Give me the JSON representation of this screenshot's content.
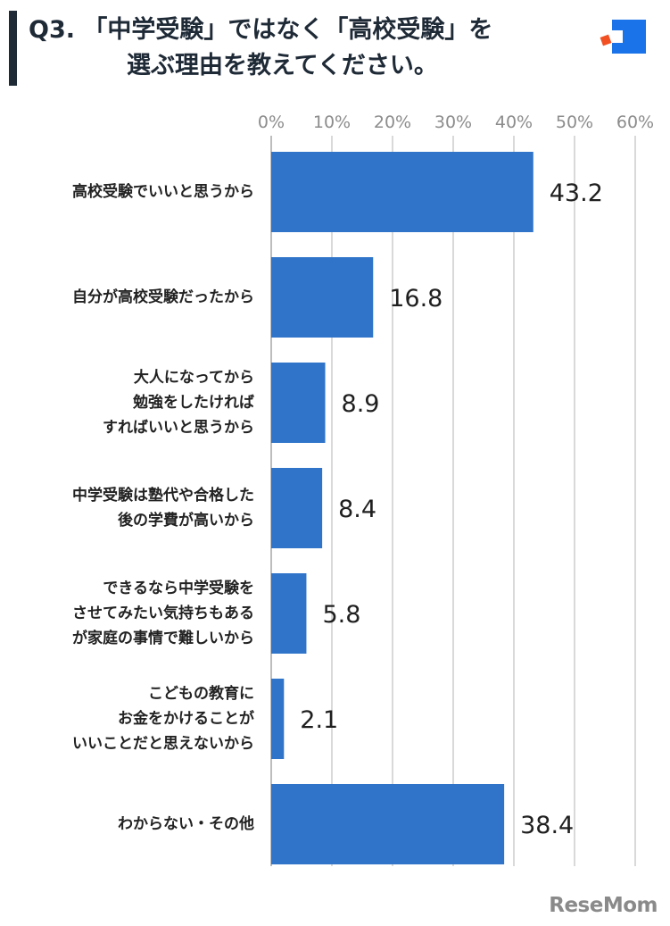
{
  "header": {
    "title_line1": "Q3. 「中学受験」ではなく「高校受験」を",
    "title_line2": "選ぶ理由を教えてください。"
  },
  "brand": {
    "name": "ReseMom",
    "color": "#8a8a8a"
  },
  "colors": {
    "bar": "#2f74c9",
    "title_accent": "#1f2a37",
    "logo_blue": "#1a73e8",
    "logo_orange": "#f25022",
    "grid": "#d9d9d9",
    "tick": "#8c8c8c"
  },
  "chart_data": {
    "type": "bar",
    "orientation": "horizontal",
    "categories": [
      "高校受験でいいと思うから",
      "自分が高校受験だったから",
      "大人になってから\n勉強をしたければ\nすればいいと思うから",
      "中学受験は塾代や合格した\n後の学費が高いから",
      "できるなら中学受験を\nさせてみたい気持ちもある\nが家庭の事情で難しいから",
      "こどもの教育に\nお金をかけることが\nいいことだと思えないから",
      "わからない・その他"
    ],
    "values": [
      43.2,
      16.8,
      8.9,
      8.4,
      5.8,
      2.1,
      38.4
    ],
    "value_labels": [
      "43.2",
      "16.8",
      "8.9",
      "8.4",
      "5.8",
      "2.1",
      "38.4"
    ],
    "xlim": [
      0,
      60
    ],
    "xticks": [
      "0%",
      "10%",
      "20%",
      "30%",
      "40%",
      "50%",
      "60%"
    ],
    "grid": true
  }
}
